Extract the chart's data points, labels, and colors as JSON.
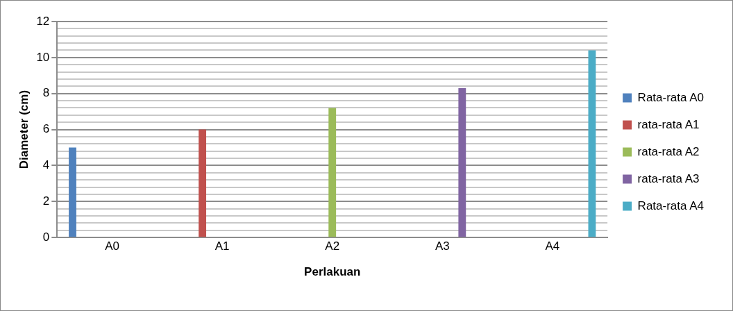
{
  "chart_data": {
    "type": "bar",
    "xlabel": "Perlakuan",
    "ylabel": "Diameter (cm)",
    "categories": [
      "A0",
      "A1",
      "A2",
      "A3",
      "A4"
    ],
    "series": [
      {
        "name": "Rata-rata A0",
        "color": "#4f81bd",
        "values": [
          5.0,
          null,
          null,
          null,
          null
        ]
      },
      {
        "name": "rata-rata A1",
        "color": "#c0504d",
        "values": [
          null,
          6.0,
          null,
          null,
          null
        ]
      },
      {
        "name": "rata-rata A2",
        "color": "#9bbb59",
        "values": [
          null,
          null,
          7.2,
          null,
          null
        ]
      },
      {
        "name": "rata-rata A3",
        "color": "#8064a2",
        "values": [
          null,
          null,
          null,
          8.3,
          null
        ]
      },
      {
        "name": "Rata-rata A4",
        "color": "#4bacc6",
        "values": [
          null,
          null,
          null,
          null,
          10.4
        ]
      }
    ],
    "ylim": [
      0,
      12
    ],
    "yticks": [
      0,
      {
        "value": 0.4,
        "label": null
      },
      {
        "value": 0.8,
        "label": null
      },
      {
        "value": 1.2,
        "label": null
      },
      {
        "value": 1.6,
        "label": null
      },
      2,
      {
        "value": 2.4,
        "label": null
      },
      {
        "value": 2.8,
        "label": null
      },
      {
        "value": 3.2,
        "label": null
      },
      {
        "value": 3.6,
        "label": null
      },
      4,
      {
        "value": 4.4,
        "label": null
      },
      {
        "value": 4.8,
        "label": null
      },
      {
        "value": 5.2,
        "label": null
      },
      {
        "value": 5.6,
        "label": null
      },
      6,
      {
        "value": 6.4,
        "label": null
      },
      {
        "value": 6.8,
        "label": null
      },
      {
        "value": 7.2,
        "label": null
      },
      {
        "value": 7.6,
        "label": null
      },
      8,
      {
        "value": 8.4,
        "label": null
      },
      {
        "value": 8.8,
        "label": null
      },
      {
        "value": 9.2,
        "label": null
      },
      {
        "value": 9.6,
        "label": null
      },
      10,
      {
        "value": 10.4,
        "label": null
      },
      {
        "value": 10.8,
        "label": null
      },
      {
        "value": 11.2,
        "label": null
      },
      {
        "value": 11.6,
        "label": null
      },
      12
    ],
    "grid": true,
    "legend": "right"
  }
}
